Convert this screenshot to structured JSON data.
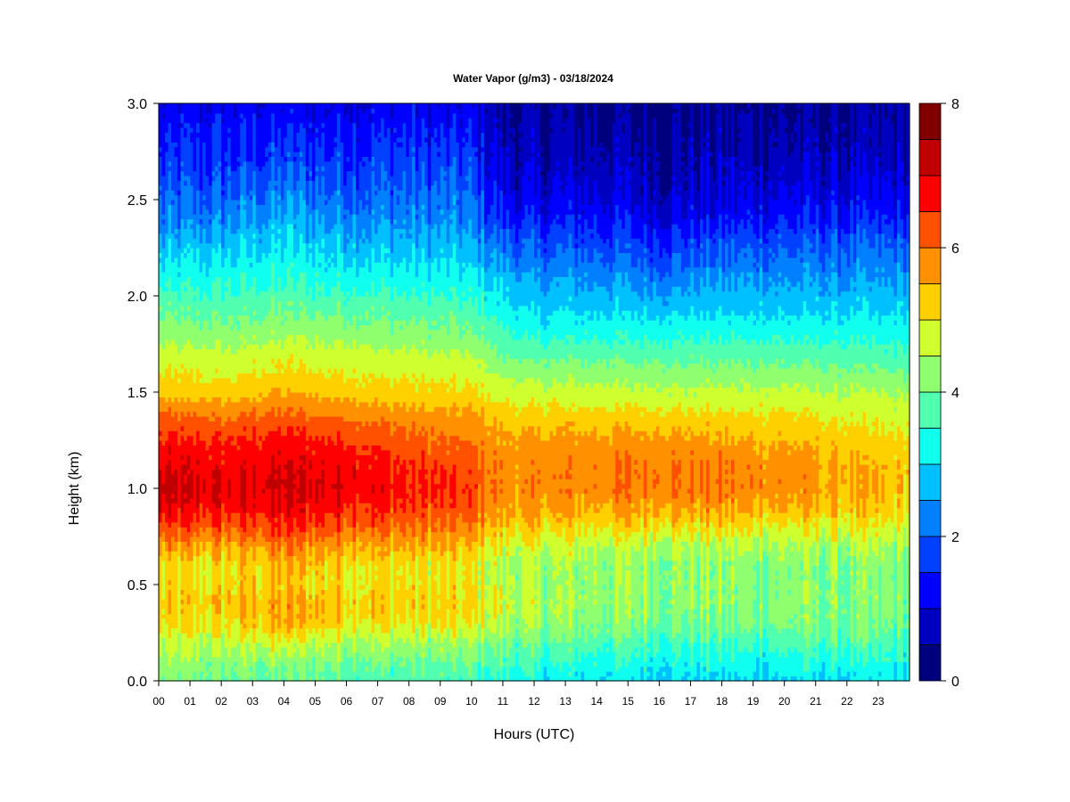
{
  "chart_data": {
    "type": "heatmap",
    "title": "Water Vapor (g/m3) - 03/18/2024",
    "xlabel": "Hours (UTC)",
    "ylabel": "Height (km)",
    "x_ticks": [
      "00",
      "01",
      "02",
      "03",
      "04",
      "05",
      "06",
      "07",
      "08",
      "09",
      "10",
      "11",
      "12",
      "13",
      "14",
      "15",
      "16",
      "17",
      "18",
      "19",
      "20",
      "21",
      "22",
      "23"
    ],
    "x_range": [
      0,
      24
    ],
    "y_ticks": [
      "0.0",
      "0.5",
      "1.0",
      "1.5",
      "2.0",
      "2.5",
      "3.0"
    ],
    "y_range": [
      0,
      3
    ],
    "colorbar": {
      "ticks": [
        "0",
        "2",
        "4",
        "6",
        "8"
      ],
      "range": [
        0,
        8
      ],
      "levels": [
        0,
        0.5,
        1,
        1.5,
        2,
        2.5,
        3,
        3.5,
        4,
        4.5,
        5,
        5.5,
        6,
        6.5,
        7,
        7.5,
        8
      ],
      "colors": [
        "#00007f",
        "#0000c0",
        "#0000ff",
        "#0040ff",
        "#0080ff",
        "#00c0ff",
        "#10ffef",
        "#50ffaf",
        "#90ff6f",
        "#d0ff2f",
        "#ffd000",
        "#ff9000",
        "#ff5000",
        "#ff0000",
        "#c00000",
        "#800000"
      ]
    },
    "grid": false,
    "legend": "colorbar-right",
    "profile_heights_km": [
      0.0,
      0.1,
      0.2,
      0.3,
      0.4,
      0.5,
      0.6,
      0.7,
      0.8,
      0.9,
      1.0,
      1.1,
      1.2,
      1.3,
      1.4,
      1.5,
      1.6,
      1.7,
      1.8,
      1.9,
      2.0,
      2.1,
      2.2,
      2.3,
      2.4,
      2.5,
      2.6,
      2.7,
      2.8,
      2.9,
      3.0
    ],
    "profiles": [
      {
        "hour": 0,
        "values": [
          4.0,
          4.3,
          4.6,
          5.0,
          5.2,
          5.0,
          5.0,
          5.6,
          6.3,
          6.9,
          7.1,
          7.0,
          6.8,
          6.4,
          6.0,
          5.3,
          5.0,
          4.7,
          4.3,
          4.0,
          3.6,
          3.2,
          2.9,
          2.5,
          2.1,
          1.9,
          1.7,
          1.5,
          1.3,
          1.2,
          1.0
        ]
      },
      {
        "hour": 2,
        "values": [
          4.0,
          4.2,
          4.6,
          5.0,
          5.3,
          5.1,
          5.0,
          5.5,
          6.2,
          6.7,
          6.9,
          6.8,
          6.6,
          6.3,
          5.8,
          5.2,
          4.9,
          4.6,
          4.2,
          3.9,
          3.6,
          3.3,
          3.0,
          2.6,
          2.3,
          2.0,
          1.8,
          1.6,
          1.4,
          1.3,
          1.1
        ]
      },
      {
        "hour": 4,
        "values": [
          3.9,
          4.2,
          4.8,
          5.5,
          5.6,
          5.3,
          5.4,
          5.9,
          6.5,
          6.9,
          7.1,
          7.0,
          6.8,
          6.5,
          6.0,
          5.5,
          5.1,
          4.8,
          4.4,
          4.0,
          3.7,
          3.4,
          3.1,
          2.9,
          2.6,
          2.3,
          2.0,
          1.7,
          1.5,
          1.3,
          1.1
        ]
      },
      {
        "hour": 6,
        "values": [
          3.8,
          4.1,
          4.5,
          5.2,
          5.4,
          5.1,
          5.2,
          5.7,
          6.3,
          6.7,
          7.0,
          6.9,
          6.7,
          6.3,
          5.8,
          5.3,
          5.0,
          4.7,
          4.3,
          4.0,
          3.6,
          3.3,
          3.0,
          2.7,
          2.4,
          2.1,
          1.9,
          1.7,
          1.5,
          1.3,
          1.1
        ]
      },
      {
        "hour": 8,
        "values": [
          3.7,
          4.0,
          4.4,
          5.0,
          5.2,
          5.0,
          5.0,
          5.5,
          6.0,
          6.4,
          6.6,
          6.5,
          6.3,
          6.0,
          5.6,
          5.2,
          4.9,
          4.6,
          4.2,
          3.9,
          3.5,
          3.2,
          2.9,
          2.6,
          2.3,
          2.1,
          1.9,
          1.7,
          1.5,
          1.3,
          1.1
        ]
      },
      {
        "hour": 10,
        "values": [
          3.6,
          3.9,
          4.3,
          4.9,
          5.1,
          4.9,
          4.9,
          5.3,
          5.8,
          6.2,
          6.4,
          6.3,
          6.1,
          5.8,
          5.5,
          5.1,
          4.8,
          4.5,
          4.1,
          3.8,
          3.4,
          3.1,
          2.8,
          2.5,
          2.2,
          2.0,
          1.8,
          1.6,
          1.4,
          1.2,
          1.0
        ]
      },
      {
        "hour": 11,
        "values": [
          3.4,
          3.7,
          4.1,
          4.6,
          4.7,
          4.6,
          4.5,
          4.8,
          5.3,
          5.6,
          5.8,
          5.8,
          5.7,
          5.5,
          5.2,
          4.8,
          4.4,
          4.0,
          3.6,
          3.3,
          3.0,
          2.7,
          2.3,
          1.9,
          1.5,
          1.2,
          1.0,
          0.8,
          0.7,
          0.6,
          0.5
        ]
      },
      {
        "hour": 12,
        "values": [
          3.2,
          3.5,
          3.9,
          4.3,
          4.5,
          4.4,
          4.4,
          4.7,
          5.2,
          5.6,
          5.8,
          5.8,
          5.7,
          5.5,
          5.1,
          4.7,
          4.3,
          3.8,
          3.4,
          3.0,
          2.7,
          2.4,
          2.0,
          1.7,
          1.3,
          1.0,
          0.8,
          0.7,
          0.6,
          0.5,
          0.4
        ]
      },
      {
        "hour": 14,
        "values": [
          3.1,
          3.4,
          3.8,
          4.2,
          4.3,
          4.3,
          4.3,
          4.6,
          5.1,
          5.6,
          5.9,
          5.9,
          5.8,
          5.5,
          5.1,
          4.7,
          4.3,
          3.8,
          3.4,
          3.0,
          2.7,
          2.4,
          2.1,
          1.7,
          1.4,
          1.1,
          0.9,
          0.7,
          0.6,
          0.5,
          0.4
        ]
      },
      {
        "hour": 16,
        "values": [
          3.0,
          3.3,
          3.7,
          4.1,
          4.3,
          4.3,
          4.3,
          4.6,
          5.2,
          5.7,
          6.0,
          6.0,
          5.8,
          5.5,
          5.1,
          4.6,
          4.2,
          3.8,
          3.4,
          3.0,
          2.6,
          2.2,
          1.8,
          1.5,
          1.1,
          0.9,
          0.7,
          0.6,
          0.5,
          0.4,
          0.3
        ]
      },
      {
        "hour": 18,
        "values": [
          2.9,
          3.2,
          3.6,
          4.0,
          4.2,
          4.2,
          4.2,
          4.5,
          5.1,
          5.6,
          5.9,
          5.9,
          5.7,
          5.4,
          5.0,
          4.6,
          4.2,
          3.8,
          3.4,
          3.0,
          2.7,
          2.4,
          2.0,
          1.7,
          1.3,
          1.0,
          0.8,
          0.7,
          0.6,
          0.5,
          0.4
        ]
      },
      {
        "hour": 20,
        "values": [
          3.0,
          3.3,
          3.7,
          4.1,
          4.2,
          4.2,
          4.2,
          4.5,
          5.0,
          5.5,
          5.8,
          5.8,
          5.6,
          5.3,
          5.0,
          4.6,
          4.2,
          3.8,
          3.4,
          3.0,
          2.7,
          2.4,
          2.1,
          1.8,
          1.4,
          1.1,
          0.9,
          0.7,
          0.6,
          0.5,
          0.4
        ]
      },
      {
        "hour": 22,
        "values": [
          3.0,
          3.3,
          3.7,
          4.0,
          4.1,
          4.1,
          4.1,
          4.4,
          4.9,
          5.3,
          5.5,
          5.5,
          5.3,
          5.1,
          4.8,
          4.5,
          4.1,
          3.7,
          3.3,
          3.0,
          2.7,
          2.4,
          2.1,
          1.8,
          1.4,
          1.1,
          0.9,
          0.7,
          0.6,
          0.5,
          0.4
        ]
      },
      {
        "hour": 24,
        "values": [
          3.0,
          3.3,
          3.6,
          3.9,
          4.0,
          4.0,
          4.0,
          4.3,
          4.7,
          5.1,
          5.3,
          5.3,
          5.2,
          5.0,
          4.7,
          4.4,
          4.0,
          3.6,
          3.3,
          3.0,
          2.7,
          2.4,
          2.1,
          1.8,
          1.4,
          1.1,
          0.9,
          0.7,
          0.6,
          0.5,
          0.4
        ]
      }
    ]
  }
}
